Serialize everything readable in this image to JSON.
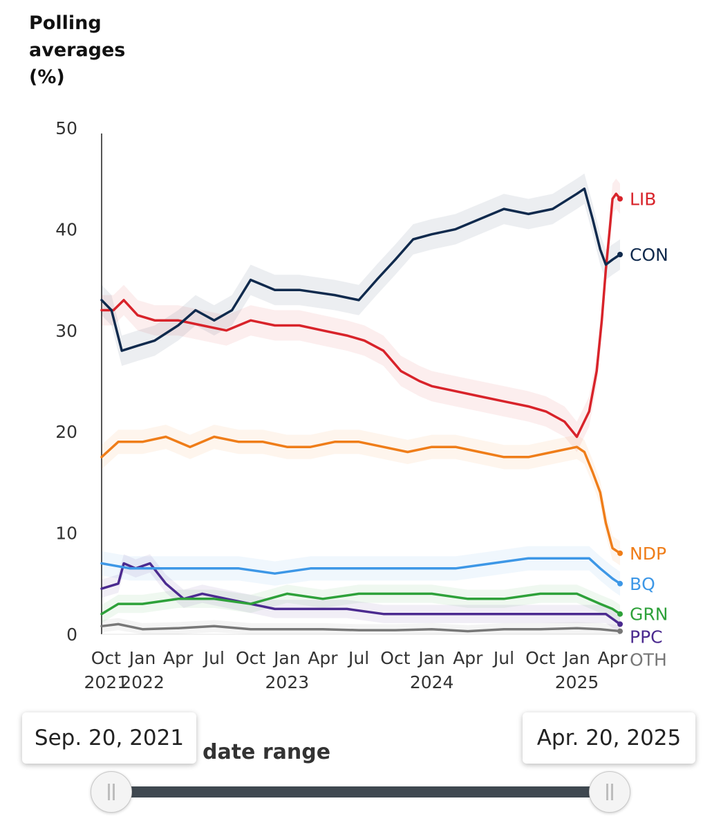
{
  "chart_data": {
    "type": "line",
    "title": "Polling averages (%)",
    "ylim": [
      0,
      50
    ],
    "y_ticks": [
      0,
      10,
      20,
      30,
      40,
      50
    ],
    "x_range": [
      "2021-09-20",
      "2025-04-20"
    ],
    "x_ticks": [
      {
        "date": "2021-10-01",
        "label": "Oct",
        "year": "2021"
      },
      {
        "date": "2022-01-01",
        "label": "Jan",
        "year": "2022"
      },
      {
        "date": "2022-04-01",
        "label": "Apr",
        "year": ""
      },
      {
        "date": "2022-07-01",
        "label": "Jul",
        "year": ""
      },
      {
        "date": "2022-10-01",
        "label": "Oct",
        "year": ""
      },
      {
        "date": "2023-01-01",
        "label": "Jan",
        "year": "2023"
      },
      {
        "date": "2023-04-01",
        "label": "Apr",
        "year": ""
      },
      {
        "date": "2023-07-01",
        "label": "Jul",
        "year": ""
      },
      {
        "date": "2023-10-01",
        "label": "Oct",
        "year": ""
      },
      {
        "date": "2024-01-01",
        "label": "Jan",
        "year": "2024"
      },
      {
        "date": "2024-04-01",
        "label": "Apr",
        "year": ""
      },
      {
        "date": "2024-07-01",
        "label": "Jul",
        "year": ""
      },
      {
        "date": "2024-10-01",
        "label": "Oct",
        "year": ""
      },
      {
        "date": "2025-01-01",
        "label": "Jan",
        "year": "2025"
      },
      {
        "date": "2025-04-01",
        "label": "Apr",
        "year": ""
      }
    ],
    "series": [
      {
        "name": "LIB",
        "color": "#d8232a",
        "band": 1.5,
        "points": [
          [
            "2021-09-20",
            32
          ],
          [
            "2021-10-20",
            32
          ],
          [
            "2021-11-15",
            33
          ],
          [
            "2021-12-20",
            31.5
          ],
          [
            "2022-02-01",
            31
          ],
          [
            "2022-04-01",
            31
          ],
          [
            "2022-06-01",
            30.5
          ],
          [
            "2022-08-01",
            30
          ],
          [
            "2022-10-01",
            31
          ],
          [
            "2022-12-01",
            30.5
          ],
          [
            "2023-02-01",
            30.5
          ],
          [
            "2023-04-01",
            30
          ],
          [
            "2023-06-01",
            29.5
          ],
          [
            "2023-07-15",
            29
          ],
          [
            "2023-09-01",
            28
          ],
          [
            "2023-10-15",
            26
          ],
          [
            "2023-12-01",
            25
          ],
          [
            "2024-01-01",
            24.5
          ],
          [
            "2024-03-01",
            24
          ],
          [
            "2024-05-01",
            23.5
          ],
          [
            "2024-07-01",
            23
          ],
          [
            "2024-09-01",
            22.5
          ],
          [
            "2024-10-15",
            22
          ],
          [
            "2024-12-01",
            21
          ],
          [
            "2025-01-01",
            19.5
          ],
          [
            "2025-02-01",
            22
          ],
          [
            "2025-02-20",
            26
          ],
          [
            "2025-03-05",
            31
          ],
          [
            "2025-03-15",
            36
          ],
          [
            "2025-03-25",
            40
          ],
          [
            "2025-04-01",
            43
          ],
          [
            "2025-04-10",
            43.5
          ],
          [
            "2025-04-20",
            43
          ]
        ]
      },
      {
        "name": "CON",
        "color": "#102a4d",
        "band": 1.5,
        "points": [
          [
            "2021-09-20",
            33
          ],
          [
            "2021-10-15",
            32
          ],
          [
            "2021-11-10",
            28
          ],
          [
            "2021-12-20",
            28.5
          ],
          [
            "2022-02-01",
            29
          ],
          [
            "2022-04-01",
            30.5
          ],
          [
            "2022-05-15",
            32
          ],
          [
            "2022-07-01",
            31
          ],
          [
            "2022-08-15",
            32
          ],
          [
            "2022-10-01",
            35
          ],
          [
            "2022-12-01",
            34
          ],
          [
            "2023-02-01",
            34
          ],
          [
            "2023-05-01",
            33.5
          ],
          [
            "2023-07-01",
            33
          ],
          [
            "2023-08-15",
            35
          ],
          [
            "2023-10-01",
            37
          ],
          [
            "2023-11-15",
            39
          ],
          [
            "2024-01-01",
            39.5
          ],
          [
            "2024-03-01",
            40
          ],
          [
            "2024-05-01",
            41
          ],
          [
            "2024-07-01",
            42
          ],
          [
            "2024-09-01",
            41.5
          ],
          [
            "2024-11-01",
            42
          ],
          [
            "2025-01-01",
            43.5
          ],
          [
            "2025-01-20",
            44
          ],
          [
            "2025-02-10",
            41
          ],
          [
            "2025-03-01",
            38
          ],
          [
            "2025-03-15",
            36.5
          ],
          [
            "2025-04-01",
            37
          ],
          [
            "2025-04-20",
            37.5
          ]
        ]
      },
      {
        "name": "NDP",
        "color": "#ef7d19",
        "band": 1.2,
        "points": [
          [
            "2021-09-20",
            17.5
          ],
          [
            "2021-11-01",
            19
          ],
          [
            "2022-01-01",
            19
          ],
          [
            "2022-03-01",
            19.5
          ],
          [
            "2022-05-01",
            18.5
          ],
          [
            "2022-07-01",
            19.5
          ],
          [
            "2022-09-01",
            19
          ],
          [
            "2022-11-01",
            19
          ],
          [
            "2023-01-01",
            18.5
          ],
          [
            "2023-03-01",
            18.5
          ],
          [
            "2023-05-01",
            19
          ],
          [
            "2023-07-01",
            19
          ],
          [
            "2023-09-01",
            18.5
          ],
          [
            "2023-11-01",
            18
          ],
          [
            "2024-01-01",
            18.5
          ],
          [
            "2024-03-01",
            18.5
          ],
          [
            "2024-05-01",
            18
          ],
          [
            "2024-07-01",
            17.5
          ],
          [
            "2024-09-01",
            17.5
          ],
          [
            "2024-11-01",
            18
          ],
          [
            "2025-01-01",
            18.5
          ],
          [
            "2025-01-20",
            18
          ],
          [
            "2025-02-10",
            16
          ],
          [
            "2025-03-01",
            14
          ],
          [
            "2025-03-15",
            11
          ],
          [
            "2025-04-01",
            8.5
          ],
          [
            "2025-04-20",
            8
          ]
        ]
      },
      {
        "name": "BQ",
        "color": "#3d97e6",
        "band": 1.2,
        "points": [
          [
            "2021-09-20",
            7
          ],
          [
            "2021-12-01",
            6.5
          ],
          [
            "2022-03-01",
            6.5
          ],
          [
            "2022-06-01",
            6.5
          ],
          [
            "2022-09-01",
            6.5
          ],
          [
            "2022-12-01",
            6
          ],
          [
            "2023-03-01",
            6.5
          ],
          [
            "2023-06-01",
            6.5
          ],
          [
            "2023-09-01",
            6.5
          ],
          [
            "2023-12-01",
            6.5
          ],
          [
            "2024-03-01",
            6.5
          ],
          [
            "2024-06-01",
            7
          ],
          [
            "2024-09-01",
            7.5
          ],
          [
            "2024-12-01",
            7.5
          ],
          [
            "2025-02-01",
            7.5
          ],
          [
            "2025-03-01",
            6.5
          ],
          [
            "2025-04-01",
            5.5
          ],
          [
            "2025-04-20",
            5
          ]
        ]
      },
      {
        "name": "GRN",
        "color": "#2ea13a",
        "band": 0.9,
        "points": [
          [
            "2021-09-20",
            2
          ],
          [
            "2021-11-01",
            3
          ],
          [
            "2022-01-01",
            3
          ],
          [
            "2022-04-01",
            3.5
          ],
          [
            "2022-07-01",
            3.5
          ],
          [
            "2022-10-01",
            3
          ],
          [
            "2023-01-01",
            4
          ],
          [
            "2023-04-01",
            3.5
          ],
          [
            "2023-07-01",
            4
          ],
          [
            "2023-10-01",
            4
          ],
          [
            "2024-01-01",
            4
          ],
          [
            "2024-04-01",
            3.5
          ],
          [
            "2024-07-01",
            3.5
          ],
          [
            "2024-10-01",
            4
          ],
          [
            "2025-01-01",
            4
          ],
          [
            "2025-03-01",
            3
          ],
          [
            "2025-04-01",
            2.5
          ],
          [
            "2025-04-20",
            2
          ]
        ]
      },
      {
        "name": "PPC",
        "color": "#4b2a8f",
        "band": 0.9,
        "points": [
          [
            "2021-09-20",
            4.5
          ],
          [
            "2021-11-01",
            5
          ],
          [
            "2021-11-15",
            7
          ],
          [
            "2021-12-15",
            6.5
          ],
          [
            "2022-01-20",
            7
          ],
          [
            "2022-03-01",
            5
          ],
          [
            "2022-04-15",
            3.5
          ],
          [
            "2022-06-01",
            4
          ],
          [
            "2022-08-01",
            3.5
          ],
          [
            "2022-10-01",
            3
          ],
          [
            "2022-12-01",
            2.5
          ],
          [
            "2023-03-01",
            2.5
          ],
          [
            "2023-06-01",
            2.5
          ],
          [
            "2023-09-01",
            2
          ],
          [
            "2023-12-01",
            2
          ],
          [
            "2024-03-01",
            2
          ],
          [
            "2024-06-01",
            2
          ],
          [
            "2024-09-01",
            2
          ],
          [
            "2024-12-01",
            2
          ],
          [
            "2025-02-01",
            2
          ],
          [
            "2025-03-15",
            2
          ],
          [
            "2025-04-20",
            1
          ]
        ]
      },
      {
        "name": "OTH",
        "color": "#777777",
        "band": 0.6,
        "points": [
          [
            "2021-09-20",
            0.8
          ],
          [
            "2021-11-01",
            1
          ],
          [
            "2022-01-01",
            0.5
          ],
          [
            "2022-04-01",
            0.6
          ],
          [
            "2022-07-01",
            0.8
          ],
          [
            "2022-10-01",
            0.5
          ],
          [
            "2023-01-01",
            0.5
          ],
          [
            "2023-04-01",
            0.5
          ],
          [
            "2023-07-01",
            0.4
          ],
          [
            "2023-10-01",
            0.4
          ],
          [
            "2024-01-01",
            0.5
          ],
          [
            "2024-04-01",
            0.3
          ],
          [
            "2024-07-01",
            0.5
          ],
          [
            "2024-10-01",
            0.5
          ],
          [
            "2025-01-01",
            0.6
          ],
          [
            "2025-03-01",
            0.5
          ],
          [
            "2025-04-20",
            0.3
          ]
        ]
      }
    ]
  },
  "controls": {
    "start_date": "Sep. 20, 2021",
    "end_date": "Apr. 20, 2025",
    "range_label": "date range"
  }
}
